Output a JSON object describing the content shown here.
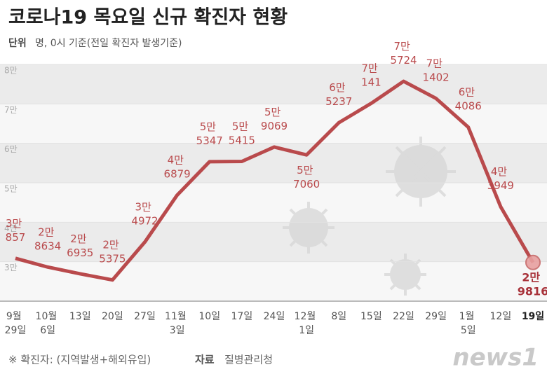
{
  "chart_data": {
    "type": "line",
    "title": "코로나19 목요일 신규 확진자 현황",
    "unit_label": "단위",
    "subtitle": "명, 0시 기준(전일 확진자 발생기준)",
    "categories": [
      "9월 29일",
      "10월 6일",
      "13일",
      "20일",
      "27일",
      "11월 3일",
      "10일",
      "17일",
      "24일",
      "12월 1일",
      "8일",
      "15일",
      "22일",
      "29일",
      "1월 5일",
      "12일",
      "19일"
    ],
    "series": [
      {
        "name": "신규 확진자",
        "color": "#b94a4c",
        "values": [
          30857,
          28634,
          26935,
          25375,
          34972,
          46879,
          55347,
          55415,
          59069,
          57060,
          65237,
          70141,
          75724,
          71402,
          64086,
          43949,
          29816
        ],
        "value_labels": [
          "3만 857",
          "2만 8634",
          "2만 6935",
          "2만 5375",
          "3만 4972",
          "4만 6879",
          "5만 5347",
          "5만 5415",
          "5만 9069",
          "5만 7060",
          "6만 5237",
          "7만 141",
          "7만 5724",
          "7만 1402",
          "6만 4086",
          "4만 3949",
          "2만 9816"
        ]
      }
    ],
    "ylim": [
      20000,
      80000
    ],
    "yticks": [
      {
        "value": 30000,
        "label": "3만"
      },
      {
        "value": 40000,
        "label": "4만"
      },
      {
        "value": 50000,
        "label": "5만"
      },
      {
        "value": 60000,
        "label": "6만"
      },
      {
        "value": 70000,
        "label": "7만"
      },
      {
        "value": 80000,
        "label": "8만"
      }
    ],
    "footnote": "※ 확진자: (지역발생+해외유입)",
    "source_label": "자료",
    "source": "질병관리청",
    "logo": "news1"
  }
}
